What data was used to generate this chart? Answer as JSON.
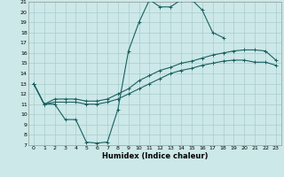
{
  "xlabel": "Humidex (Indice chaleur)",
  "xlim": [
    -0.5,
    23.5
  ],
  "ylim": [
    7,
    21
  ],
  "yticks": [
    7,
    8,
    9,
    10,
    11,
    12,
    13,
    14,
    15,
    16,
    17,
    18,
    19,
    20,
    21
  ],
  "xticks": [
    0,
    1,
    2,
    3,
    4,
    5,
    6,
    7,
    8,
    9,
    10,
    11,
    12,
    13,
    14,
    15,
    16,
    17,
    18,
    19,
    20,
    21,
    22,
    23
  ],
  "bg_color": "#cce8e8",
  "grid_color": "#aacccc",
  "line_color": "#1a6060",
  "line1_x": [
    0,
    1,
    2,
    3,
    4,
    5,
    6,
    7,
    8,
    9,
    10,
    11,
    12,
    13,
    14,
    15,
    16,
    17,
    18
  ],
  "line1_y": [
    13,
    11,
    11,
    9.5,
    9.5,
    7.3,
    7.2,
    7.3,
    10.5,
    16.2,
    19.0,
    21.2,
    20.5,
    20.5,
    21.2,
    21.2,
    20.2,
    18.0,
    17.5
  ],
  "line2_x": [
    0,
    1,
    2,
    3,
    4,
    5,
    6,
    7,
    8,
    9,
    10,
    11,
    12,
    13,
    14,
    15,
    16,
    17,
    18,
    19,
    20,
    21,
    22,
    23
  ],
  "line2_y": [
    13.0,
    11.0,
    11.5,
    11.5,
    11.5,
    11.3,
    11.3,
    11.5,
    12.0,
    12.5,
    13.3,
    13.8,
    14.3,
    14.6,
    15.0,
    15.2,
    15.5,
    15.8,
    16.0,
    16.2,
    16.3,
    16.3,
    16.2,
    15.3
  ],
  "line3_x": [
    0,
    1,
    2,
    3,
    4,
    5,
    6,
    7,
    8,
    9,
    10,
    11,
    12,
    13,
    14,
    15,
    16,
    17,
    18,
    19,
    20,
    21,
    22,
    23
  ],
  "line3_y": [
    13.0,
    11.0,
    11.2,
    11.2,
    11.2,
    11.0,
    11.0,
    11.2,
    11.5,
    12.0,
    12.5,
    13.0,
    13.5,
    14.0,
    14.3,
    14.5,
    14.8,
    15.0,
    15.2,
    15.3,
    15.3,
    15.1,
    15.1,
    14.8
  ]
}
